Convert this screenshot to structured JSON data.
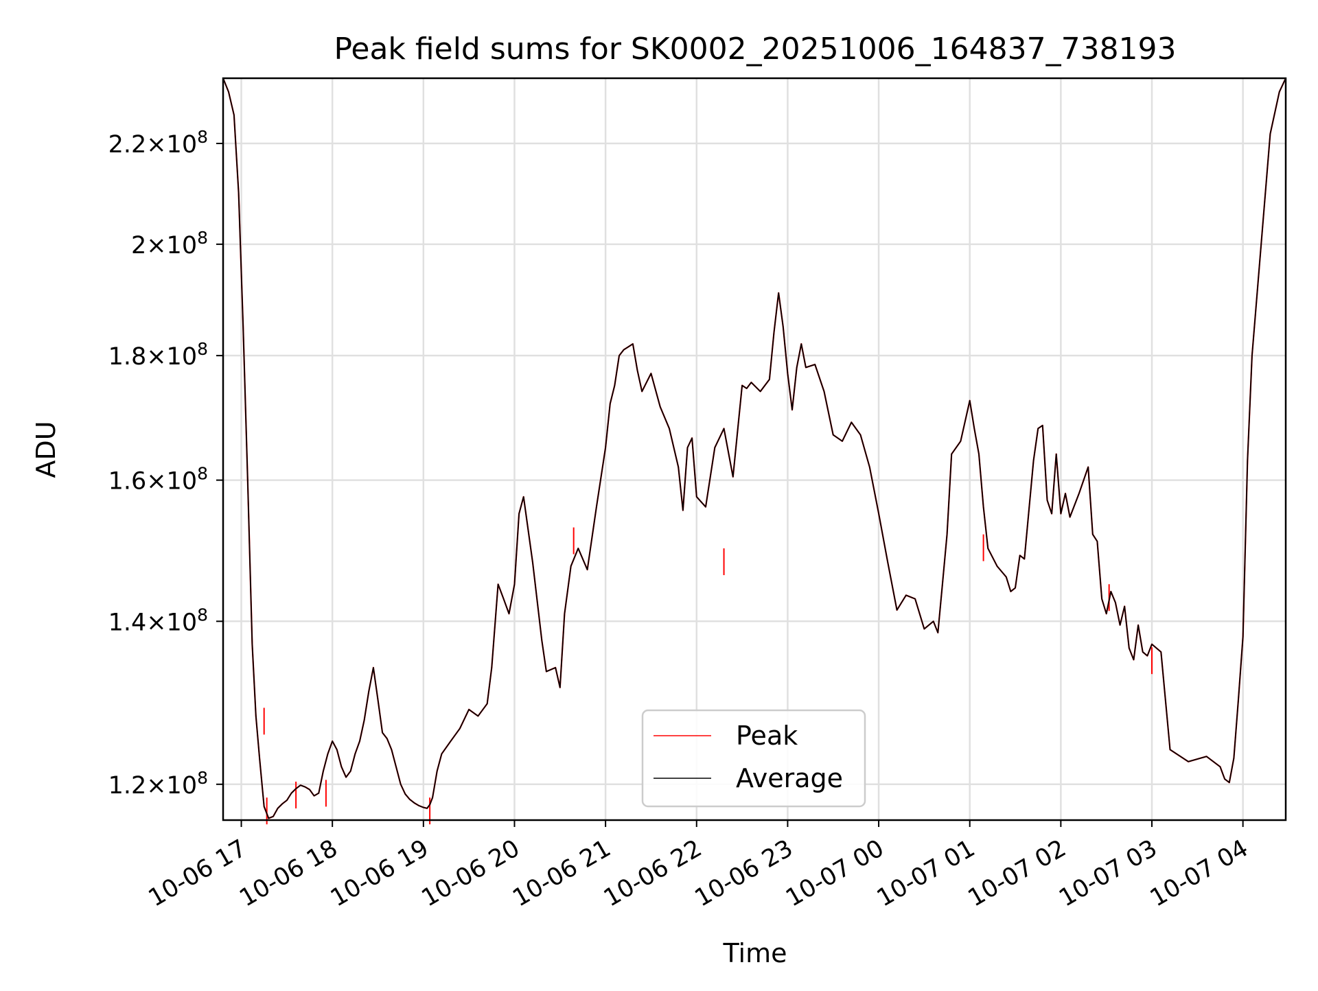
{
  "chart_data": {
    "type": "line",
    "title": "Peak field sums for SK0002_20251006_164837_738193",
    "xlabel": "Time",
    "ylabel": "ADU",
    "grid": true,
    "legend_position": "lower-center",
    "xlim": [
      16.8,
      28.47
    ],
    "ylim": [
      116000000,
      234000000
    ],
    "y_scale": "log",
    "x_units": "hours since 10-06 00:00",
    "x_ticks": [
      {
        "x": 17,
        "label": "10-06 17"
      },
      {
        "x": 18,
        "label": "10-06 18"
      },
      {
        "x": 19,
        "label": "10-06 19"
      },
      {
        "x": 20,
        "label": "10-06 20"
      },
      {
        "x": 21,
        "label": "10-06 21"
      },
      {
        "x": 22,
        "label": "10-06 22"
      },
      {
        "x": 23,
        "label": "10-06 23"
      },
      {
        "x": 24,
        "label": "10-07 00"
      },
      {
        "x": 25,
        "label": "10-07 01"
      },
      {
        "x": 26,
        "label": "10-07 02"
      },
      {
        "x": 27,
        "label": "10-07 03"
      },
      {
        "x": 28,
        "label": "10-07 04"
      }
    ],
    "y_ticks": [
      {
        "y": 120000000,
        "mantissa": "1.2",
        "exponent": "8"
      },
      {
        "y": 140000000,
        "mantissa": "1.4",
        "exponent": "8"
      },
      {
        "y": 160000000,
        "mantissa": "1.6",
        "exponent": "8"
      },
      {
        "y": 180000000,
        "mantissa": "1.8",
        "exponent": "8"
      },
      {
        "y": 200000000,
        "mantissa": "2",
        "exponent": "8"
      },
      {
        "y": 220000000,
        "mantissa": "2.2",
        "exponent": "8"
      }
    ],
    "series": [
      {
        "name": "Peak",
        "color": "#ff0000",
        "spikes": [
          [
            17.25,
            129000000
          ],
          [
            17.28,
            118500000
          ],
          [
            17.6,
            120300000
          ],
          [
            17.93,
            120500000
          ],
          [
            19.07,
            118500000
          ],
          [
            20.65,
            153000000
          ],
          [
            22.3,
            150000000
          ],
          [
            25.15,
            152000000
          ],
          [
            26.53,
            145000000
          ],
          [
            27.0,
            136600000
          ]
        ]
      },
      {
        "name": "Average",
        "color": "#000000",
        "x": [
          16.8,
          16.86,
          16.92,
          16.97,
          17.02,
          17.07,
          17.12,
          17.16,
          17.2,
          17.25,
          17.3,
          17.35,
          17.4,
          17.45,
          17.5,
          17.55,
          17.6,
          17.65,
          17.7,
          17.75,
          17.8,
          17.85,
          17.9,
          17.95,
          18.0,
          18.05,
          18.1,
          18.15,
          18.2,
          18.25,
          18.3,
          18.35,
          18.4,
          18.45,
          18.5,
          18.55,
          18.6,
          18.65,
          18.7,
          18.75,
          18.8,
          18.85,
          18.9,
          18.95,
          19.0,
          19.04,
          19.07,
          19.1,
          19.15,
          19.2,
          19.3,
          19.4,
          19.5,
          19.6,
          19.7,
          19.75,
          19.82,
          19.88,
          19.94,
          20.0,
          20.05,
          20.1,
          20.2,
          20.3,
          20.35,
          20.45,
          20.5,
          20.55,
          20.62,
          20.7,
          20.8,
          20.9,
          21.0,
          21.05,
          21.1,
          21.15,
          21.2,
          21.25,
          21.3,
          21.35,
          21.4,
          21.5,
          21.6,
          21.7,
          21.8,
          21.85,
          21.9,
          21.95,
          22.0,
          22.1,
          22.2,
          22.3,
          22.4,
          22.5,
          22.55,
          22.6,
          22.7,
          22.8,
          22.85,
          22.9,
          22.95,
          23.0,
          23.05,
          23.1,
          23.15,
          23.2,
          23.3,
          23.4,
          23.5,
          23.6,
          23.7,
          23.8,
          23.9,
          24.0,
          24.1,
          24.2,
          24.3,
          24.4,
          24.5,
          24.6,
          24.65,
          24.7,
          24.75,
          24.8,
          24.9,
          25.0,
          25.05,
          25.1,
          25.15,
          25.2,
          25.3,
          25.4,
          25.45,
          25.5,
          25.55,
          25.6,
          25.7,
          25.75,
          25.8,
          25.85,
          25.9,
          25.95,
          26.0,
          26.05,
          26.1,
          26.2,
          26.3,
          26.35,
          26.4,
          26.45,
          26.5,
          26.55,
          26.6,
          26.65,
          26.7,
          26.75,
          26.8,
          26.85,
          26.9,
          26.95,
          27.0,
          27.1,
          27.2,
          27.4,
          27.6,
          27.75,
          27.8,
          27.85,
          27.9,
          27.95,
          28.0,
          28.05,
          28.1,
          28.2,
          28.3,
          28.4,
          28.47
        ],
        "y": [
          234000000,
          231000000,
          226000000,
          210000000,
          185000000,
          160000000,
          137000000,
          128000000,
          123000000,
          117500000,
          116200000,
          116400000,
          117300000,
          117800000,
          118200000,
          119000000,
          119500000,
          119900000,
          119700000,
          119400000,
          118700000,
          119000000,
          121500000,
          123500000,
          125000000,
          124000000,
          122000000,
          120800000,
          121500000,
          123500000,
          125000000,
          127500000,
          131000000,
          134000000,
          130000000,
          126000000,
          125300000,
          124000000,
          122000000,
          120000000,
          118900000,
          118300000,
          117900000,
          117600000,
          117400000,
          117300000,
          117700000,
          118500000,
          121500000,
          123500000,
          125000000,
          126500000,
          128800000,
          128000000,
          129500000,
          134000000,
          145000000,
          143000000,
          141000000,
          145000000,
          155000000,
          157500000,
          148000000,
          137500000,
          133500000,
          134000000,
          131500000,
          141000000,
          147500000,
          150000000,
          147000000,
          156000000,
          165000000,
          172000000,
          175000000,
          180000000,
          181000000,
          181500000,
          182000000,
          177500000,
          174000000,
          177000000,
          171500000,
          168000000,
          162000000,
          155500000,
          165000000,
          166500000,
          157500000,
          156000000,
          165000000,
          168000000,
          160500000,
          175000000,
          174500000,
          175500000,
          174000000,
          176000000,
          184000000,
          191000000,
          185000000,
          177000000,
          171000000,
          178000000,
          182000000,
          178000000,
          178500000,
          174000000,
          167000000,
          166000000,
          169000000,
          167000000,
          162000000,
          155000000,
          148000000,
          141500000,
          143500000,
          143000000,
          139000000,
          140000000,
          138500000,
          145000000,
          152000000,
          164000000,
          166000000,
          172500000,
          168000000,
          164000000,
          156000000,
          150000000,
          147500000,
          146000000,
          144000000,
          144500000,
          149000000,
          148500000,
          163000000,
          168000000,
          168500000,
          157000000,
          155000000,
          164000000,
          155000000,
          158000000,
          154500000,
          158000000,
          162000000,
          152000000,
          151000000,
          143000000,
          141000000,
          144000000,
          142500000,
          139500000,
          142000000,
          136500000,
          135000000,
          139500000,
          136000000,
          135500000,
          137000000,
          136000000,
          124000000,
          122600000,
          123200000,
          122000000,
          120600000,
          120200000,
          123000000,
          130000000,
          138000000,
          163000000,
          180000000,
          200000000,
          222000000,
          231000000,
          234000000
        ]
      }
    ]
  }
}
